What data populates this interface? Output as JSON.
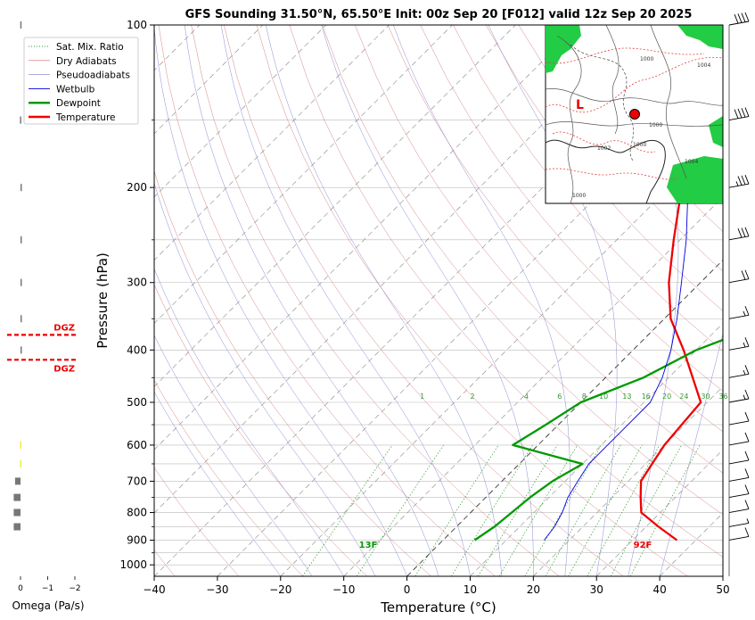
{
  "header": {
    "title": "GFS Sounding 31.50°N, 65.50°E Init: 00z Sep 20 [F012] valid 12z Sep 20 2025"
  },
  "colors": {
    "temperature": "#ee0000",
    "dewpoint": "#009900",
    "wetbulb": "#0000dd",
    "dry_adiabat": "#cc6666",
    "pseudoadiabat": "#7777cc",
    "mixing_ratio": "#339933",
    "isotherm": "#999999",
    "dgz": "#ee0000"
  },
  "legend": {
    "position": "top-left",
    "items": [
      {
        "label": "Sat. Mix. Ratio",
        "style": "dotted",
        "color": "#339933"
      },
      {
        "label": "Dry Adiabats",
        "style": "thin",
        "color": "#cc6666"
      },
      {
        "label": "Pseudoadiabats",
        "style": "thin",
        "color": "#7777cc"
      },
      {
        "label": "Wetbulb",
        "style": "line",
        "color": "#0000dd"
      },
      {
        "label": "Dewpoint",
        "style": "thick",
        "color": "#009900"
      },
      {
        "label": "Temperature",
        "style": "thick",
        "color": "#ee0000"
      }
    ]
  },
  "chart_data": {
    "type": "line",
    "subtype": "skew-t log-p",
    "xlabel": "Temperature (°C)",
    "ylabel": "Pressure (hPa)",
    "xlim": [
      -40,
      50
    ],
    "ylim": [
      1050,
      100
    ],
    "yscale": "log",
    "x_ticks": [
      -40,
      -30,
      -20,
      -10,
      0,
      10,
      20,
      30,
      40,
      50
    ],
    "x_tick_labels": [
      "−40",
      "−30",
      "−20",
      "−10",
      "0",
      "10",
      "20",
      "30",
      "40",
      "50"
    ],
    "y_ticks": [
      1000,
      900,
      800,
      700,
      600,
      500,
      400,
      300,
      200,
      100
    ],
    "y_tick_labels": [
      "1000",
      "900",
      "800",
      "700",
      "600",
      "500",
      "400",
      "300",
      "200",
      "100"
    ],
    "grid": true,
    "series": [
      {
        "name": "Temperature",
        "points": [
          [
            900,
            37
          ],
          [
            850,
            32
          ],
          [
            800,
            27
          ],
          [
            750,
            24.5
          ],
          [
            700,
            22
          ],
          [
            650,
            21
          ],
          [
            600,
            20
          ],
          [
            550,
            19.5
          ],
          [
            500,
            19
          ],
          [
            400,
            8
          ],
          [
            350,
            1
          ],
          [
            300,
            -5
          ],
          [
            250,
            -11
          ],
          [
            200,
            -18
          ],
          [
            150,
            -23
          ],
          [
            125,
            -26
          ],
          [
            100,
            -30
          ]
        ]
      },
      {
        "name": "Dewpoint",
        "points": [
          [
            900,
            5
          ],
          [
            850,
            6
          ],
          [
            800,
            6.5
          ],
          [
            750,
            7
          ],
          [
            700,
            8
          ],
          [
            650,
            10
          ],
          [
            600,
            -4
          ],
          [
            550,
            -2
          ],
          [
            500,
            0
          ],
          [
            450,
            6
          ],
          [
            400,
            10
          ],
          [
            350,
            18
          ],
          [
            300,
            22
          ],
          [
            250,
            28
          ],
          [
            200,
            35
          ],
          [
            150,
            40
          ],
          [
            100,
            44
          ]
        ]
      },
      {
        "name": "Wetbulb",
        "points": [
          [
            900,
            16
          ],
          [
            850,
            15.5
          ],
          [
            800,
            14.5
          ],
          [
            750,
            13
          ],
          [
            700,
            12
          ],
          [
            650,
            11
          ],
          [
            600,
            11
          ],
          [
            550,
            11
          ],
          [
            500,
            11
          ],
          [
            450,
            9
          ],
          [
            400,
            6
          ],
          [
            350,
            2
          ],
          [
            300,
            -3
          ],
          [
            250,
            -9
          ],
          [
            200,
            -17
          ]
        ]
      }
    ],
    "surface_labels": {
      "temperature": "92F",
      "dewpoint": "13F"
    },
    "mixing_ratio_labels": [
      "1",
      "2",
      "4",
      "6",
      "8",
      "10",
      "13",
      "16",
      "20",
      "24",
      "30",
      "36"
    ],
    "mixing_ratio_values": [
      1,
      2,
      4,
      6,
      8,
      10,
      13,
      16,
      20,
      24,
      30,
      36
    ],
    "dgz_label": "DGZ",
    "dgz_pressures": [
      375,
      417
    ],
    "omega": {
      "xlabel": "Omega (Pa/s)",
      "x_ticks": [
        0,
        -1,
        -2
      ],
      "x_tick_labels": [
        "0",
        "−1",
        "−2"
      ],
      "bars": [
        [
          850,
          -0.25
        ],
        [
          800,
          -0.25
        ],
        [
          750,
          -0.25
        ],
        [
          700,
          -0.2
        ],
        [
          650,
          -0.02
        ],
        [
          600,
          -0.02
        ],
        [
          400,
          0.02
        ],
        [
          350,
          0.04
        ],
        [
          300,
          0.05
        ],
        [
          250,
          0.05
        ],
        [
          200,
          0.02
        ],
        [
          150,
          -0.02
        ],
        [
          100,
          -0.01
        ]
      ]
    },
    "wind_barbs": [
      {
        "p": 900,
        "speed": 10
      },
      {
        "p": 850,
        "speed": 5
      },
      {
        "p": 800,
        "speed": 10
      },
      {
        "p": 750,
        "speed": 10
      },
      {
        "p": 700,
        "speed": 10
      },
      {
        "p": 650,
        "speed": 10
      },
      {
        "p": 600,
        "speed": 10
      },
      {
        "p": 550,
        "speed": 10
      },
      {
        "p": 500,
        "speed": 15
      },
      {
        "p": 450,
        "speed": 15
      },
      {
        "p": 400,
        "speed": 15
      },
      {
        "p": 350,
        "speed": 15
      },
      {
        "p": 300,
        "speed": 20
      },
      {
        "p": 250,
        "speed": 30
      },
      {
        "p": 200,
        "speed": 35
      },
      {
        "p": 150,
        "speed": 40
      },
      {
        "p": 100,
        "speed": 40
      }
    ],
    "inset_map": {
      "map_labels": [
        "L",
        "1000",
        "1000",
        "1002",
        "1004",
        "1000",
        "1000",
        "1004"
      ],
      "marker_color": "#ee0000"
    }
  }
}
